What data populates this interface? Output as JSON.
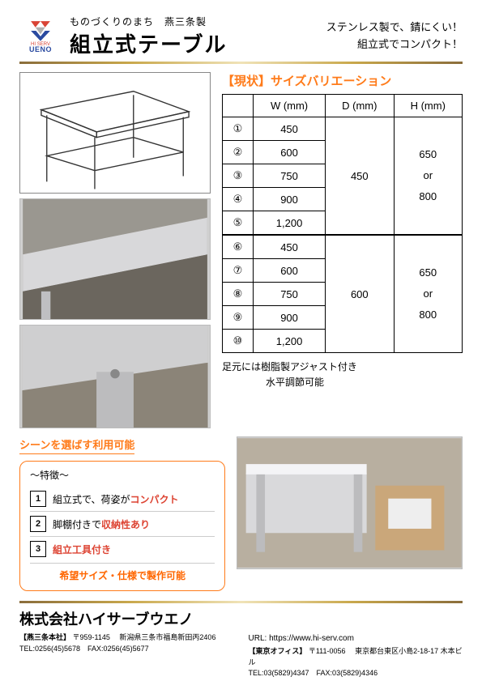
{
  "logo": {
    "brand_top": "HI SERV",
    "brand_bottom": "UENO",
    "mark_color_top": "#d94436",
    "mark_color_mid": "#b0b0b0",
    "mark_color_bot": "#2a4aa0"
  },
  "header": {
    "subtitle": "ものづくりのまち　燕三条製",
    "title": "組立式テーブル",
    "tagline1": "ステンレス製で、錆にくい！",
    "tagline2": "組立式でコンパクト！"
  },
  "size_section": {
    "title": "【現状】サイズバリエーション",
    "columns": {
      "w": "W (mm)",
      "d": "D (mm)",
      "h": "H (mm)"
    },
    "groups": [
      {
        "d": "450",
        "h": [
          "650",
          "or",
          "800"
        ],
        "rows": [
          {
            "idx": "①",
            "w": "450"
          },
          {
            "idx": "②",
            "w": "600"
          },
          {
            "idx": "③",
            "w": "750"
          },
          {
            "idx": "④",
            "w": "900"
          },
          {
            "idx": "⑤",
            "w": "1,200"
          }
        ]
      },
      {
        "d": "600",
        "h": [
          "650",
          "or",
          "800"
        ],
        "rows": [
          {
            "idx": "⑥",
            "w": "450"
          },
          {
            "idx": "⑦",
            "w": "600"
          },
          {
            "idx": "⑧",
            "w": "750"
          },
          {
            "idx": "⑨",
            "w": "900"
          },
          {
            "idx": "⑩",
            "w": "1,200"
          }
        ]
      }
    ],
    "note1": "足元には樹脂製アジャスト付き",
    "note2": "水平調節可能"
  },
  "features": {
    "heading": "シーンを選ばす利用可能",
    "box_head": "～特徴～",
    "items": [
      {
        "num": "1",
        "pre": "組立式で、荷姿が",
        "em": "コンパクト"
      },
      {
        "num": "2",
        "pre": "脚棚付きで",
        "em": "収納性あり"
      },
      {
        "num": "3",
        "pre": "",
        "em": "組立工具付き"
      }
    ],
    "foot": "希望サイズ・仕様で製作可能"
  },
  "footer": {
    "company": "株式会社ハイサーブウエノ",
    "url_label": "URL:",
    "url": "https://www.hi-serv.com",
    "offices": [
      {
        "tag": "【燕三条本社】",
        "zip": "〒959-1145",
        "addr": "新潟県三条市福島新田丙2406",
        "tel": "TEL:0256(45)5678　FAX:0256(45)5677"
      },
      {
        "tag": "【東京オフィス】",
        "zip": "〒111-0056",
        "addr": "東京都台東区小島2-18-17 木本ビル",
        "tel": "TEL:03(5829)4347　FAX:03(5829)4346"
      }
    ]
  },
  "colors": {
    "accent": "#ff7b1a",
    "text": "#000000"
  }
}
